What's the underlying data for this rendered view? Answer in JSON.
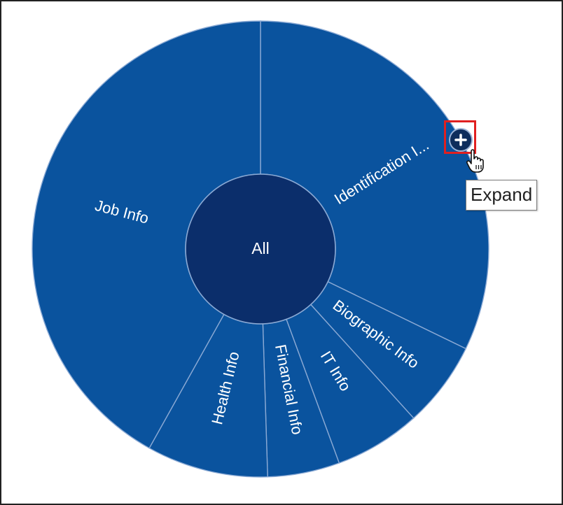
{
  "chart_data": {
    "type": "sunburst",
    "center": {
      "label": "All"
    },
    "segments": [
      {
        "label": "Identification I...",
        "value": 32.2
      },
      {
        "label": "Biographic Info",
        "value": 6.1
      },
      {
        "label": "IT Info",
        "value": 6.1
      },
      {
        "label": "Financial Info",
        "value": 5.1
      },
      {
        "label": "Health Info",
        "value": 8.6
      },
      {
        "label": "Job Info",
        "value": 41.9
      }
    ],
    "start_angle_deg": 0,
    "colors": {
      "center": "#0b2e6b",
      "segment": "#0a539e",
      "separator": "#8aa9d4"
    }
  },
  "controls": {
    "expand_icon": "plus-circle-icon",
    "cursor_icon": "hand-pointer-icon"
  },
  "tooltip": {
    "text": "Expand"
  }
}
